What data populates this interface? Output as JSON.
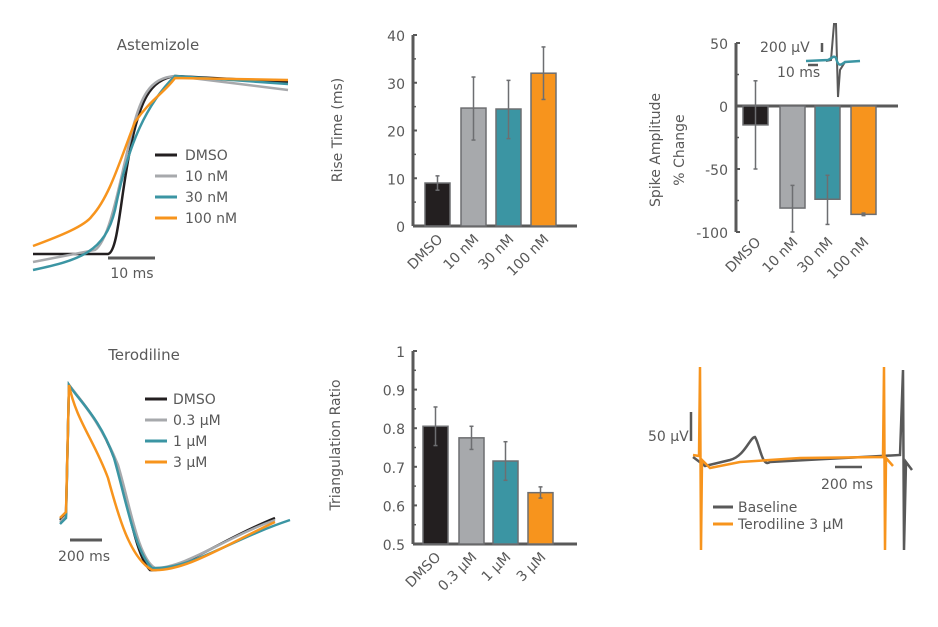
{
  "colors": {
    "DMSO": "#231f20",
    "low": "#a7a9ac",
    "mid": "#3b95a3",
    "high": "#f7941d",
    "axis": "#595959",
    "baseline": "#595959"
  },
  "traces": {
    "astemizole": {
      "title": "Astemizole",
      "legend": [
        "DMSO",
        "10 nM",
        "30 nM",
        "100 nM"
      ],
      "scale_label": "10 ms"
    },
    "terodiline": {
      "title": "Terodiline",
      "legend": [
        "DMSO",
        "0.3 µM",
        "1 µM",
        "3 µM"
      ],
      "scale_label": "200 ms"
    },
    "field_potential": {
      "legend": [
        "Baseline",
        "Terodiline 3 µM"
      ],
      "voltage_scale": "50 µV",
      "time_scale": "200 ms"
    },
    "spike_inset": {
      "voltage_scale": "200 µV",
      "time_scale": "10 ms"
    }
  },
  "chart_data": [
    {
      "type": "bar",
      "ylabel": "Rise Time (ms)",
      "categories": [
        "DMSO",
        "10 nM",
        "30 nM",
        "100 nM"
      ],
      "values": [
        9,
        24.7,
        24.5,
        32
      ],
      "error_low": [
        7.5,
        18,
        18.3,
        26.5
      ],
      "error_high": [
        10.5,
        31.2,
        30.5,
        37.5
      ],
      "ylim": [
        0,
        40
      ],
      "yticks": [
        0,
        10,
        20,
        30,
        40
      ],
      "ytick_labels": [
        "0",
        "10",
        "20",
        "30",
        "40"
      ],
      "grid": false
    },
    {
      "type": "bar",
      "ylabel": [
        "Spike Amplitude",
        "% Change"
      ],
      "categories": [
        "DMSO",
        "10 nM",
        "30 nM",
        "100 nM"
      ],
      "values": [
        -15,
        -81,
        -74,
        -86
      ],
      "error_low": [
        -50,
        -100,
        -94,
        -87
      ],
      "error_high": [
        20,
        -63,
        -55,
        -85
      ],
      "ylim": [
        -100,
        50
      ],
      "yticks": [
        -100,
        -50,
        0,
        50
      ],
      "ytick_labels": [
        "-100",
        "-50",
        "0",
        "50"
      ],
      "grid": false
    },
    {
      "type": "bar",
      "ylabel": "Triangulation Ratio",
      "categories": [
        "DMSO",
        "0.3 µM",
        "1 µM",
        "3 µM"
      ],
      "values": [
        0.805,
        0.775,
        0.715,
        0.633
      ],
      "error_low": [
        0.755,
        0.745,
        0.665,
        0.619
      ],
      "error_high": [
        0.855,
        0.805,
        0.765,
        0.648
      ],
      "ylim": [
        0.5,
        1
      ],
      "yticks": [
        0.5,
        0.6,
        0.7,
        0.8,
        0.9,
        1
      ],
      "ytick_labels": [
        "0.5",
        "0.6",
        "0.7",
        "0.8",
        "0.9",
        "1"
      ],
      "grid": false
    }
  ]
}
